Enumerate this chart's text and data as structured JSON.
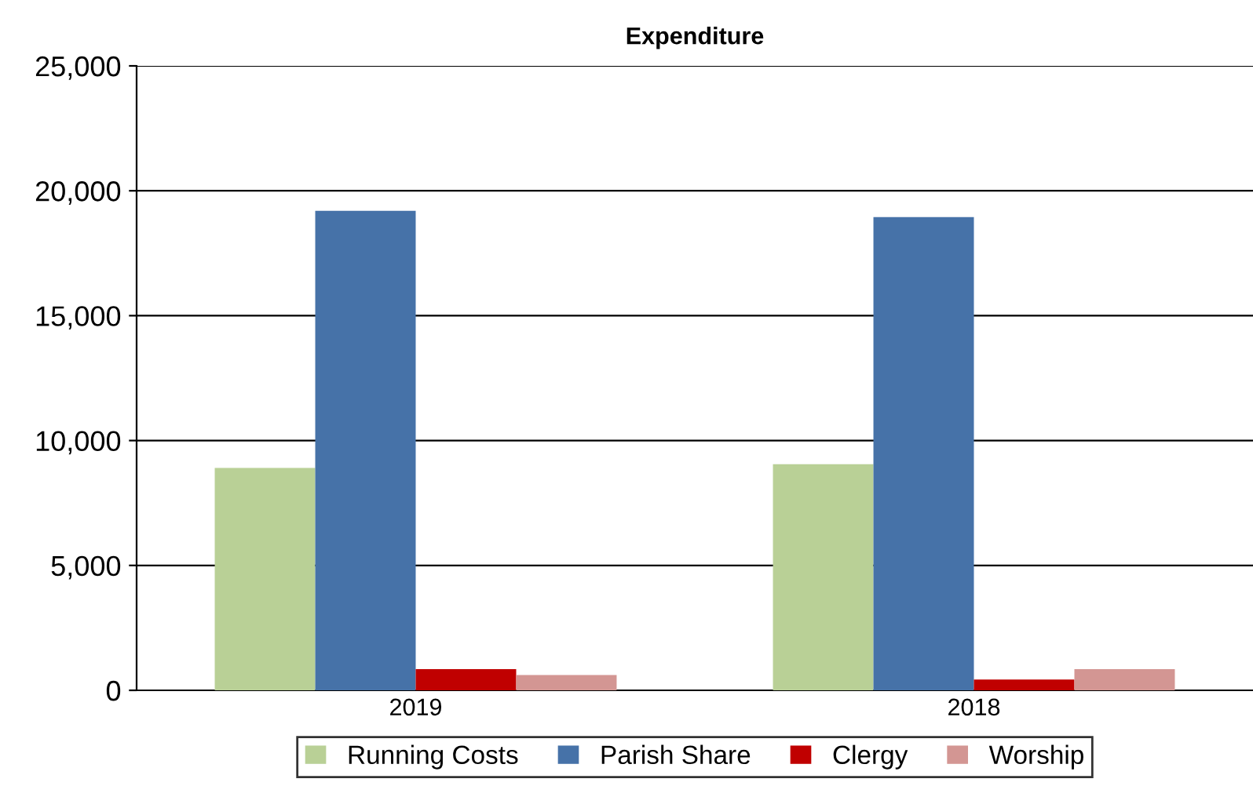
{
  "chart_data": {
    "type": "bar",
    "title": "Expenditure",
    "categories": [
      "2019",
      "2018"
    ],
    "series": [
      {
        "name": "Running Costs",
        "color": "#b9d096",
        "values": [
          8900,
          9050
        ]
      },
      {
        "name": "Parish Share",
        "color": "#4672a8",
        "values": [
          19200,
          18950
        ]
      },
      {
        "name": "Clergy",
        "color": "#c00000",
        "values": [
          850,
          430
        ]
      },
      {
        "name": "Worship",
        "color": "#d39693",
        "values": [
          610,
          850
        ]
      }
    ],
    "ylim": [
      0,
      25000
    ],
    "yticks": [
      {
        "value": 0,
        "label": "0"
      },
      {
        "value": 5000,
        "label": "5,000"
      },
      {
        "value": 10000,
        "label": "10,000"
      },
      {
        "value": 15000,
        "label": "15,000"
      },
      {
        "value": 20000,
        "label": "20,000"
      },
      {
        "value": 25000,
        "label": "25,000"
      }
    ],
    "grid": "y",
    "legend": "bottom"
  }
}
